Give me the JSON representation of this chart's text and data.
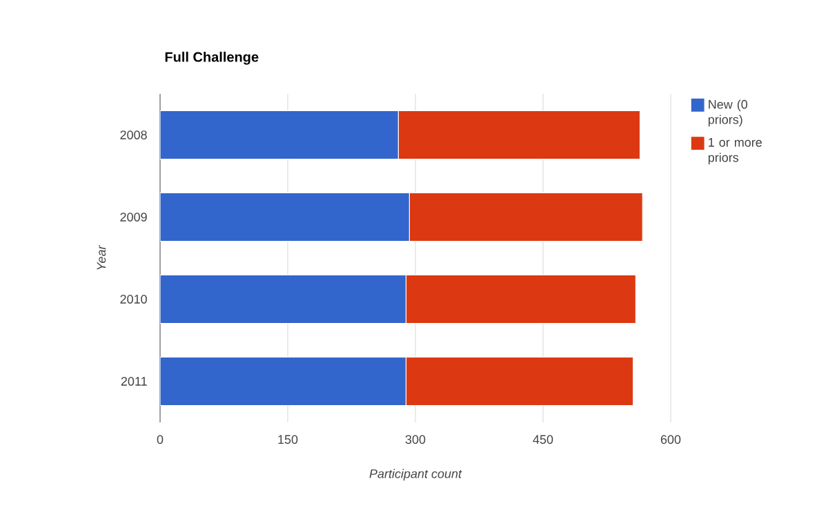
{
  "chart_data": {
    "type": "bar",
    "orientation": "horizontal",
    "stacked": true,
    "title": "Full Challenge",
    "xlabel": "Participant count",
    "ylabel": "Year",
    "categories": [
      "2008",
      "2009",
      "2010",
      "2011"
    ],
    "series": [
      {
        "name": "New (0 priors)",
        "color": "#3366cc",
        "values": [
          280,
          293,
          289,
          289
        ]
      },
      {
        "name": "1 or more priors",
        "color": "#dc3912",
        "values": [
          284,
          274,
          270,
          267
        ]
      }
    ],
    "xlim": [
      0,
      600
    ],
    "xticks": [
      0,
      150,
      300,
      450,
      600
    ],
    "grid": "x",
    "legend": "right"
  }
}
